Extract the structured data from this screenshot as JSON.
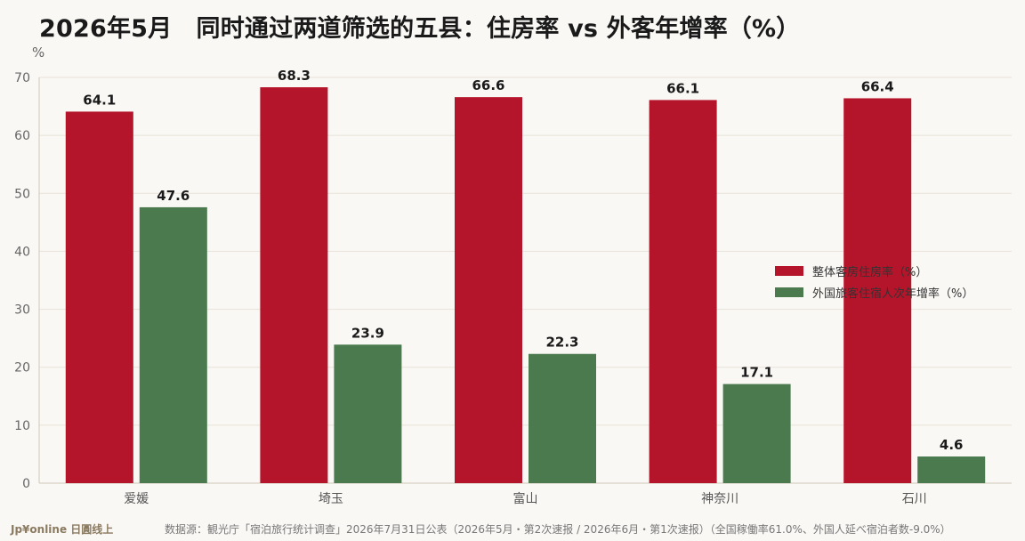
{
  "title": "2026年5月　同时通过两道筛选的五县：住房率 vs 外客年增率（%）",
  "chart_data": {
    "type": "bar",
    "categories": [
      "爱媛",
      "埼玉",
      "富山",
      "神奈川",
      "石川"
    ],
    "series": [
      {
        "name": "整体客房住房率（%）",
        "color": "#b5152b",
        "values": [
          64.1,
          68.3,
          66.6,
          66.1,
          66.4
        ]
      },
      {
        "name": "外国旅客住宿人次年增率（%）",
        "color": "#4a7a4e",
        "values": [
          47.6,
          23.9,
          22.3,
          17.1,
          4.6
        ]
      }
    ],
    "ylabel": "%",
    "ylim": [
      0,
      70
    ],
    "yticks": [
      0,
      10,
      20,
      30,
      40,
      50,
      60,
      70
    ],
    "grid": true,
    "legend_position": "right"
  },
  "footer": {
    "brand": "Jp¥online 日圓线上",
    "source": "数据源：観光庁「宿泊旅行统计调查」2026年7月31日公表（2026年5月・第2次速报 / 2026年6月・第1次速报）（全国稼働率61.0%、外国人延べ宿泊者数-9.0%）"
  }
}
